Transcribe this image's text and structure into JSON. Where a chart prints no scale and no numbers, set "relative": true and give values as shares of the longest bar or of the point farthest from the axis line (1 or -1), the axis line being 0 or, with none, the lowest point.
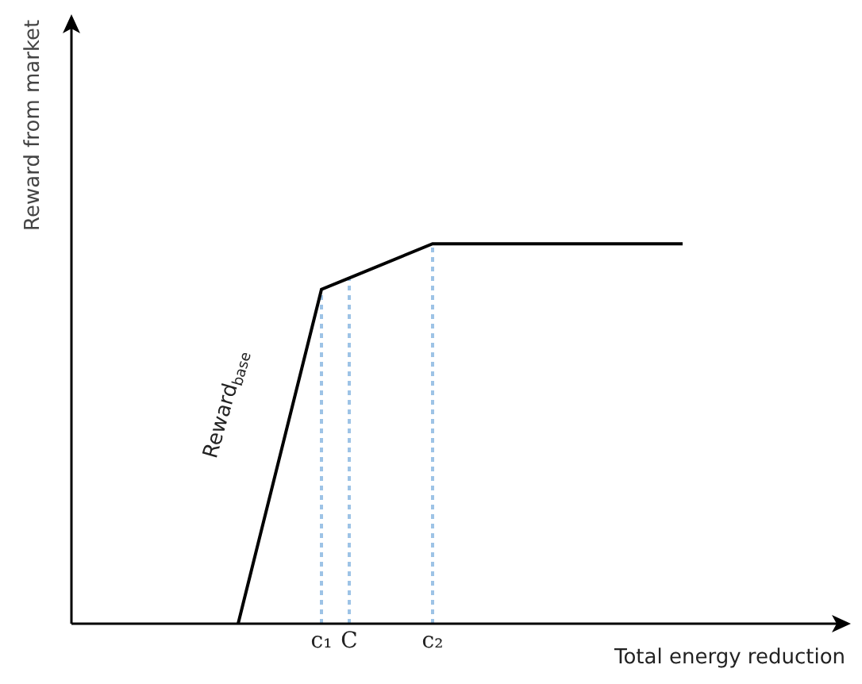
{
  "chart_data": {
    "type": "line",
    "relative": true,
    "xlabel": "Total energy reduction",
    "ylabel": "Reward from market",
    "categories": [
      null,
      null,
      null,
      null,
      null,
      null,
      null,
      null,
      null,
      "c₁",
      "C",
      null,
      null,
      "c₂",
      null,
      null,
      null,
      null,
      null,
      null,
      null,
      null,
      null,
      null,
      null,
      null,
      null,
      null,
      null
    ],
    "series": [
      {
        "color": "#000000",
        "values": [
          null,
          null,
          null,
          null,
          null,
          null,
          0,
          null,
          null,
          0.88,
          0.91,
          null,
          null,
          1,
          null,
          null,
          null,
          null,
          null,
          null,
          null,
          null,
          1,
          null,
          null,
          null,
          null,
          null,
          null
        ]
      }
    ],
    "ref_lines": [
      {
        "axis": "x",
        "value": "c₁",
        "color": "#9dc3e6",
        "line_style": "dotted"
      },
      {
        "axis": "x",
        "value": "C",
        "color": "#9dc3e6",
        "line_style": "dotted"
      },
      {
        "axis": "x",
        "value": "c₂",
        "color": "#9dc3e6",
        "line_style": "dotted"
      }
    ],
    "annotations": [
      "Reward$_{base}$"
    ],
    "grid": false,
    "marker": "none",
    "line_style": "solid"
  }
}
